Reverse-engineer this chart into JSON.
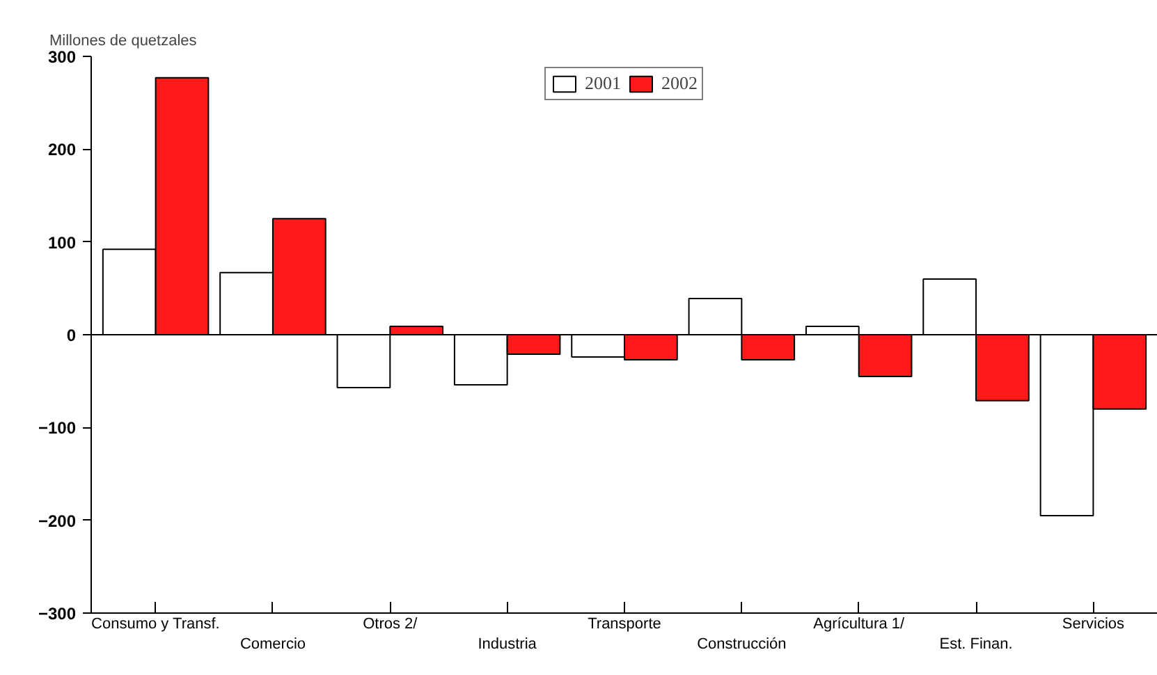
{
  "chart_data": {
    "type": "bar",
    "ylabel": "Millones de quetzales",
    "categories": [
      "Consumo y Transf.",
      "Comercio",
      "Otros 2/",
      "Industria",
      "Transporte",
      "Construcción",
      "Agrícultura 1/",
      "Est. Finan.",
      "Servicios"
    ],
    "series": [
      {
        "name": "2001",
        "color": "#ffffff",
        "values": [
          92,
          67,
          -57,
          -54,
          -24,
          39,
          9,
          60,
          -195
        ]
      },
      {
        "name": "2002",
        "color": "#ff1a1a",
        "values": [
          277,
          125,
          9,
          -21,
          -27,
          -27,
          -45,
          -71,
          -80
        ]
      }
    ],
    "ylim": [
      -300,
      300
    ],
    "yticks": [
      -300,
      -200,
      -100,
      0,
      100,
      200,
      300
    ],
    "ref_lines": [
      {
        "axis": "y",
        "value": 0
      }
    ],
    "grid": false,
    "legend": "top"
  }
}
